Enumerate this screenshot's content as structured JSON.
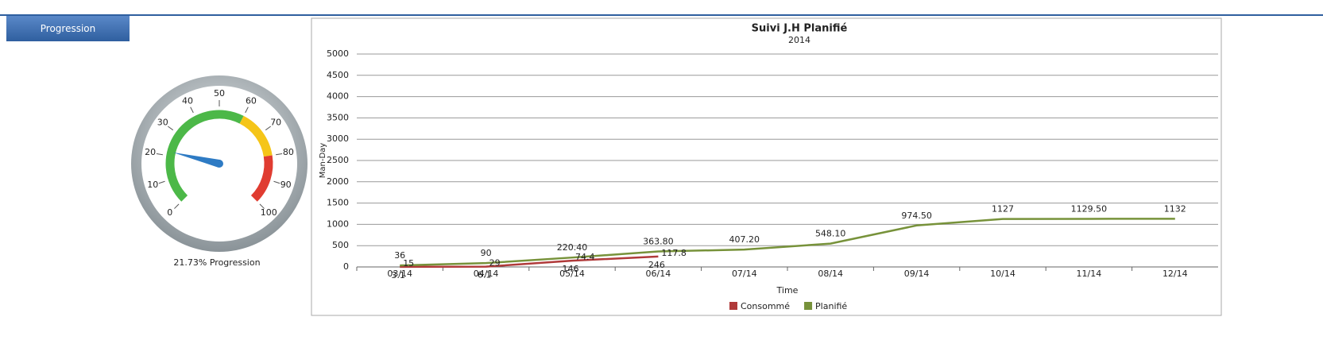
{
  "tab": "Progression",
  "chart_data": [
    {
      "type": "gauge",
      "value": 21.73,
      "label": "21.73% Progression",
      "ticks": [
        0,
        10,
        20,
        30,
        40,
        50,
        60,
        70,
        80,
        90,
        100
      ],
      "range": [
        0,
        100
      ],
      "bands": [
        {
          "from": 0,
          "to": 60,
          "color": "#4cb848"
        },
        {
          "from": 60,
          "to": 80,
          "color": "#f5c518"
        },
        {
          "from": 80,
          "to": 100,
          "color": "#e03c31"
        }
      ],
      "needle_color": "#2e7bc4"
    },
    {
      "type": "line",
      "title": "Suivi J.H Planifié",
      "subtitle": "2014",
      "x_label": "Time",
      "y_label": "Man-Day",
      "categories": [
        "03/14",
        "04/14",
        "05/14",
        "06/14",
        "07/14",
        "08/14",
        "09/14",
        "10/14",
        "11/14",
        "12/14"
      ],
      "ylim": [
        0,
        5000
      ],
      "yticks": [
        0,
        500,
        1000,
        1500,
        2000,
        2500,
        3000,
        3500,
        4000,
        4500,
        5000
      ],
      "grid": true,
      "series": [
        {
          "name": "Consommé",
          "color": "#b03a3a",
          "values": [
            3.1,
            6.1,
            146,
            246,
            null,
            null,
            null,
            null,
            null,
            null
          ],
          "value_labels": [
            "3.1",
            "6.1",
            "146",
            "246",
            null,
            null,
            null,
            null,
            null,
            null
          ]
        },
        {
          "name": "Planifié",
          "color": "#77923a",
          "values": [
            36,
            90,
            220.4,
            363.8,
            407.2,
            548.1,
            974.5,
            1127,
            1129.5,
            1132
          ],
          "value_labels": [
            "36",
            "90",
            "220.40",
            "363.80",
            "407.20",
            "548.10",
            "974.50",
            "1127",
            "1129.50",
            "1132"
          ]
        }
      ],
      "annotations": [
        {
          "category": 0,
          "text": "15"
        },
        {
          "category": 1,
          "text": "29"
        },
        {
          "category": 2,
          "text": "74.4"
        },
        {
          "category": 3,
          "text": "117.8"
        }
      ],
      "legend": "bottom"
    }
  ]
}
